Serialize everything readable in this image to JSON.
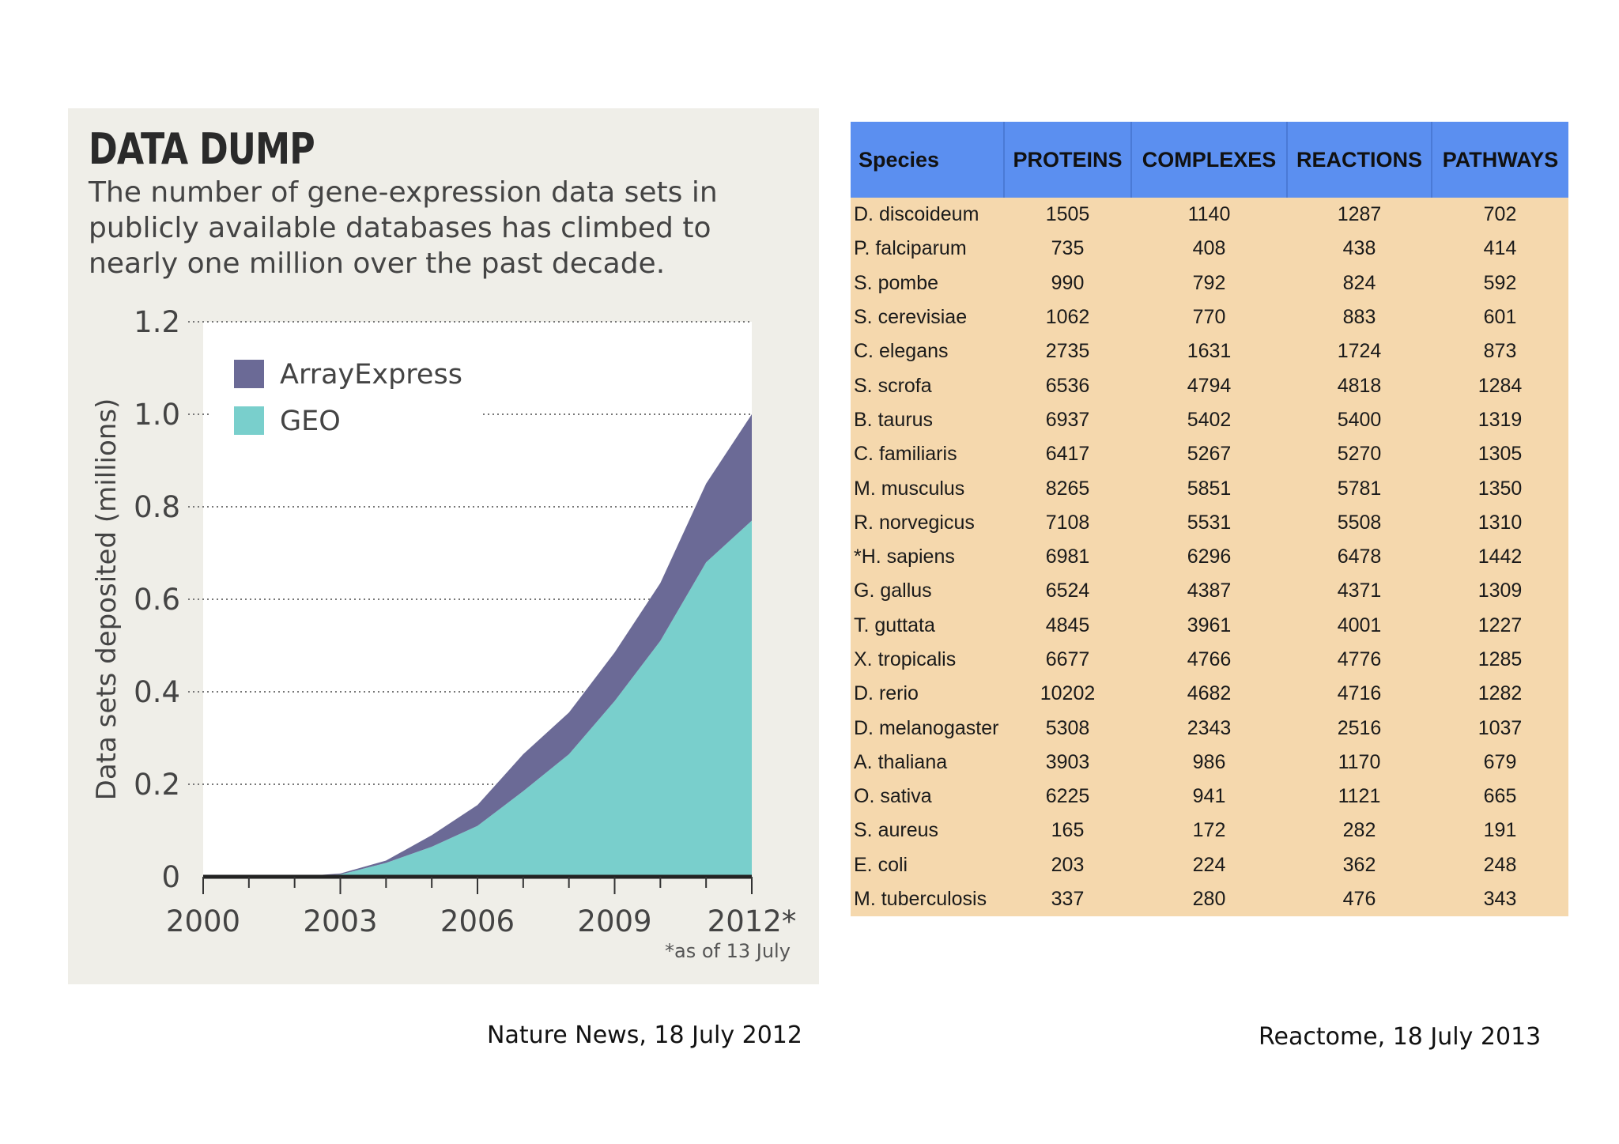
{
  "chart_data": [
    {
      "type": "area",
      "title": "DATA DUMP",
      "subtitle": "The number of gene-expression data sets in publicly available databases has climbed to nearly one million over the past decade.",
      "xlabel": "",
      "ylabel": "Data sets deposited (millions)",
      "x_ticks": [
        "2000",
        "2003",
        "2006",
        "2009",
        "2012*"
      ],
      "y_ticks": [
        "0",
        "0.2",
        "0.4",
        "0.6",
        "0.8",
        "1.0",
        "1.2"
      ],
      "xlim": [
        2000,
        2012
      ],
      "ylim": [
        0,
        1.2
      ],
      "stacked": true,
      "grid": "dotted horizontal",
      "legend_position": "top-left",
      "footnote": "*as of 13 July",
      "x": [
        2000,
        2001,
        2002,
        2003,
        2004,
        2005,
        2006,
        2007,
        2008,
        2009,
        2010,
        2011,
        2012
      ],
      "series": [
        {
          "name": "GEO",
          "color": "#79cfcc",
          "values": [
            0,
            0,
            0,
            0.005,
            0.03,
            0.065,
            0.11,
            0.185,
            0.265,
            0.38,
            0.51,
            0.68,
            0.77
          ]
        },
        {
          "name": "ArrayExpress",
          "color": "#6b6a96",
          "values": [
            0,
            0,
            0,
            0.002,
            0.005,
            0.025,
            0.045,
            0.08,
            0.09,
            0.105,
            0.125,
            0.17,
            0.23
          ]
        }
      ]
    },
    {
      "type": "table",
      "columns": [
        "Species",
        "PROTEINS",
        "COMPLEXES",
        "REACTIONS",
        "PATHWAYS"
      ],
      "rows": [
        [
          "D. discoideum",
          "1505",
          "1140",
          "1287",
          "702"
        ],
        [
          "P. falciparum",
          "735",
          "408",
          "438",
          "414"
        ],
        [
          "S. pombe",
          "990",
          "792",
          "824",
          "592"
        ],
        [
          "S. cerevisiae",
          "1062",
          "770",
          "883",
          "601"
        ],
        [
          "C. elegans",
          "2735",
          "1631",
          "1724",
          "873"
        ],
        [
          "S. scrofa",
          "6536",
          "4794",
          "4818",
          "1284"
        ],
        [
          "B. taurus",
          "6937",
          "5402",
          "5400",
          "1319"
        ],
        [
          "C. familiaris",
          "6417",
          "5267",
          "5270",
          "1305"
        ],
        [
          "M. musculus",
          "8265",
          "5851",
          "5781",
          "1350"
        ],
        [
          "R. norvegicus",
          "7108",
          "5531",
          "5508",
          "1310"
        ],
        [
          "*H. sapiens",
          "6981",
          "6296",
          "6478",
          "1442"
        ],
        [
          "G. gallus",
          "6524",
          "4387",
          "4371",
          "1309"
        ],
        [
          "T. guttata",
          "4845",
          "3961",
          "4001",
          "1227"
        ],
        [
          "X. tropicalis",
          "6677",
          "4766",
          "4776",
          "1285"
        ],
        [
          "D. rerio",
          "10202",
          "4682",
          "4716",
          "1282"
        ],
        [
          "D. melanogaster",
          "5308",
          "2343",
          "2516",
          "1037"
        ],
        [
          "A. thaliana",
          "3903",
          "986",
          "1170",
          "679"
        ],
        [
          "O. sativa",
          "6225",
          "941",
          "1121",
          "665"
        ],
        [
          "S. aureus",
          "165",
          "172",
          "282",
          "191"
        ],
        [
          "E. coli",
          "203",
          "224",
          "362",
          "248"
        ],
        [
          "M. tuberculosis",
          "337",
          "280",
          "476",
          "343"
        ]
      ]
    }
  ],
  "captions": {
    "left": "Nature News, 18 July 2012",
    "right": "Reactome, 18 July 2013"
  },
  "colors": {
    "panel_background": "#efeee8",
    "table_header": "#5b8ff0",
    "table_body": "#f5d8ad"
  }
}
